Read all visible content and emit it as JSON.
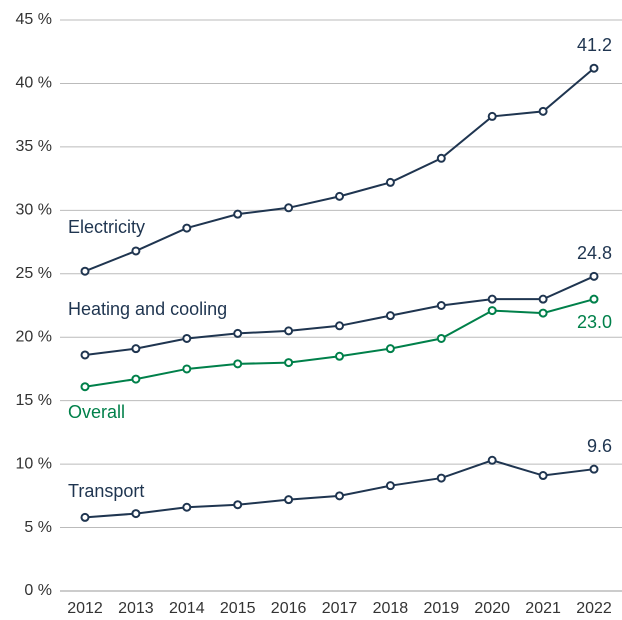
{
  "chart_data": {
    "type": "line",
    "categories": [
      "2012",
      "2013",
      "2014",
      "2015",
      "2016",
      "2017",
      "2018",
      "2019",
      "2020",
      "2021",
      "2022"
    ],
    "series": [
      {
        "name": "Electricity",
        "color": "#1f3550",
        "values": [
          25.2,
          26.8,
          28.6,
          29.7,
          30.2,
          31.1,
          32.2,
          34.1,
          37.4,
          37.8,
          41.2
        ],
        "value_labels": [
          null,
          null,
          null,
          null,
          null,
          null,
          null,
          null,
          null,
          null,
          "41.2"
        ]
      },
      {
        "name": "Heating and cooling",
        "color": "#1f3550",
        "values": [
          18.6,
          19.1,
          19.9,
          20.3,
          20.5,
          20.9,
          21.7,
          22.5,
          23.0,
          23.0,
          24.8
        ],
        "value_labels": [
          null,
          null,
          null,
          null,
          null,
          null,
          null,
          null,
          null,
          null,
          "24.8"
        ]
      },
      {
        "name": "Overall",
        "color": "#00804a",
        "values": [
          16.1,
          16.7,
          17.5,
          17.9,
          18.0,
          18.5,
          19.1,
          19.9,
          22.1,
          21.9,
          23.0
        ],
        "value_labels": [
          null,
          null,
          null,
          null,
          null,
          null,
          null,
          null,
          null,
          null,
          "23.0"
        ]
      },
      {
        "name": "Transport",
        "color": "#1f3550",
        "values": [
          5.8,
          6.1,
          6.6,
          6.8,
          7.2,
          7.5,
          8.3,
          8.9,
          10.3,
          9.1,
          9.6
        ],
        "value_labels": [
          null,
          null,
          null,
          null,
          null,
          null,
          null,
          null,
          null,
          null,
          "9.6"
        ]
      }
    ],
    "ylim": [
      0,
      45
    ],
    "yticks": [
      {
        "value": 0,
        "label": "0 %"
      },
      {
        "value": 5,
        "label": "5 %"
      },
      {
        "value": 10,
        "label": "10 %"
      },
      {
        "value": 15,
        "label": "15 %"
      },
      {
        "value": 20,
        "label": "20 %"
      },
      {
        "value": 25,
        "label": "25 %"
      },
      {
        "value": 30,
        "label": "30 %"
      },
      {
        "value": 35,
        "label": "35 %"
      },
      {
        "value": 40,
        "label": "40 %"
      },
      {
        "value": 45,
        "label": "45 %"
      }
    ],
    "grid": true
  }
}
